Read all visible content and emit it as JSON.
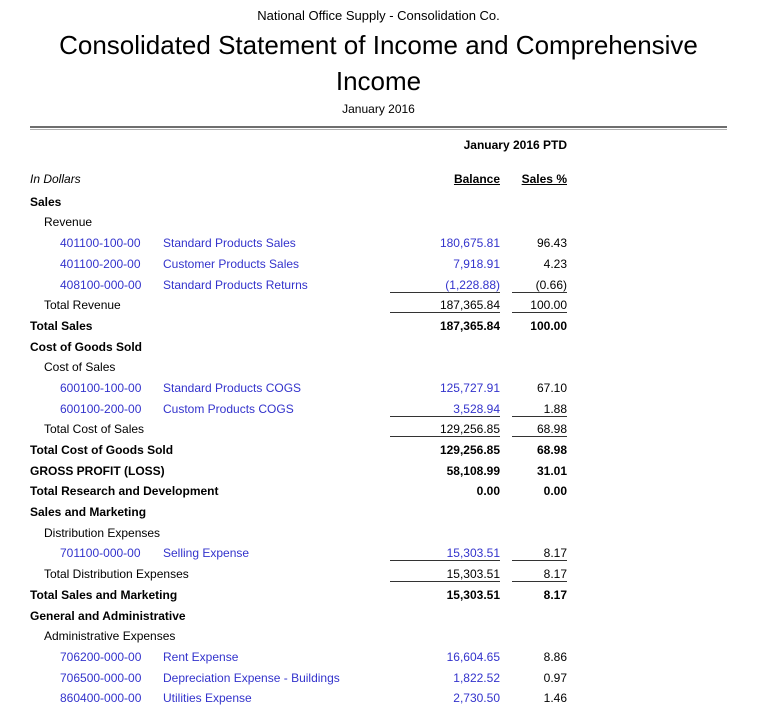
{
  "page": {
    "link_color": "#3333cc",
    "text_color": "#000000",
    "background": "#ffffff"
  },
  "header": {
    "company": "National Office Supply - Consolidation Co.",
    "title": "Consolidated Statement of Income and Comprehensive Income",
    "period": "January 2016"
  },
  "table": {
    "period_group_label": "January 2016 PTD",
    "units_label": "In Dollars",
    "balance_header": "Balance",
    "pct_header": "Sales %"
  },
  "rows": [
    {
      "type": "section",
      "label": "Sales"
    },
    {
      "type": "subsection",
      "label": "Revenue"
    },
    {
      "type": "detail",
      "account": "401100-100-00",
      "name": "Standard Products Sales",
      "balance": "180,675.81",
      "pct": "96.43"
    },
    {
      "type": "detail",
      "account": "401100-200-00",
      "name": "Customer Products Sales",
      "balance": "7,918.91",
      "pct": "4.23"
    },
    {
      "type": "detail",
      "account": "408100-000-00",
      "name": "Standard Products Returns",
      "balance": "(1,228.88)",
      "pct": "(0.66)",
      "rule": true
    },
    {
      "type": "total",
      "label": "Total Revenue",
      "balance": "187,365.84",
      "pct": "100.00",
      "rule": true
    },
    {
      "type": "grand",
      "label": "Total Sales",
      "balance": "187,365.84",
      "pct": "100.00"
    },
    {
      "type": "section",
      "label": "Cost of Goods Sold"
    },
    {
      "type": "subsection",
      "label": "Cost of Sales"
    },
    {
      "type": "detail",
      "account": "600100-100-00",
      "name": "Standard Products COGS",
      "balance": "125,727.91",
      "pct": "67.10"
    },
    {
      "type": "detail",
      "account": "600100-200-00",
      "name": "Custom Products COGS",
      "balance": "3,528.94",
      "pct": "1.88",
      "rule": true
    },
    {
      "type": "total",
      "label": "Total Cost of Sales",
      "balance": "129,256.85",
      "pct": "68.98",
      "rule": true
    },
    {
      "type": "grand",
      "label": "Total Cost of Goods Sold",
      "balance": "129,256.85",
      "pct": "68.98"
    },
    {
      "type": "grand",
      "label": "GROSS PROFIT (LOSS)",
      "balance": "58,108.99",
      "pct": "31.01"
    },
    {
      "type": "grand",
      "label": "Total Research and Development",
      "balance": "0.00",
      "pct": "0.00"
    },
    {
      "type": "section",
      "label": "Sales and Marketing"
    },
    {
      "type": "subsection",
      "label": "Distribution Expenses"
    },
    {
      "type": "detail",
      "account": "701100-000-00",
      "name": "Selling Expense",
      "balance": "15,303.51",
      "pct": "8.17",
      "rule": true
    },
    {
      "type": "total",
      "label": "Total Distribution Expenses",
      "balance": "15,303.51",
      "pct": "8.17",
      "rule": true
    },
    {
      "type": "grand",
      "label": "Total Sales and Marketing",
      "balance": "15,303.51",
      "pct": "8.17"
    },
    {
      "type": "section",
      "label": "General and Administrative"
    },
    {
      "type": "subsection",
      "label": "Administrative Expenses"
    },
    {
      "type": "detail",
      "account": "706200-000-00",
      "name": "Rent Expense",
      "balance": "16,604.65",
      "pct": "8.86"
    },
    {
      "type": "detail",
      "account": "706500-000-00",
      "name": "Depreciation Expense - Buildings",
      "balance": "1,822.52",
      "pct": "0.97"
    },
    {
      "type": "detail",
      "account": "860400-000-00",
      "name": "Utilities Expense",
      "balance": "2,730.50",
      "pct": "1.46"
    }
  ]
}
